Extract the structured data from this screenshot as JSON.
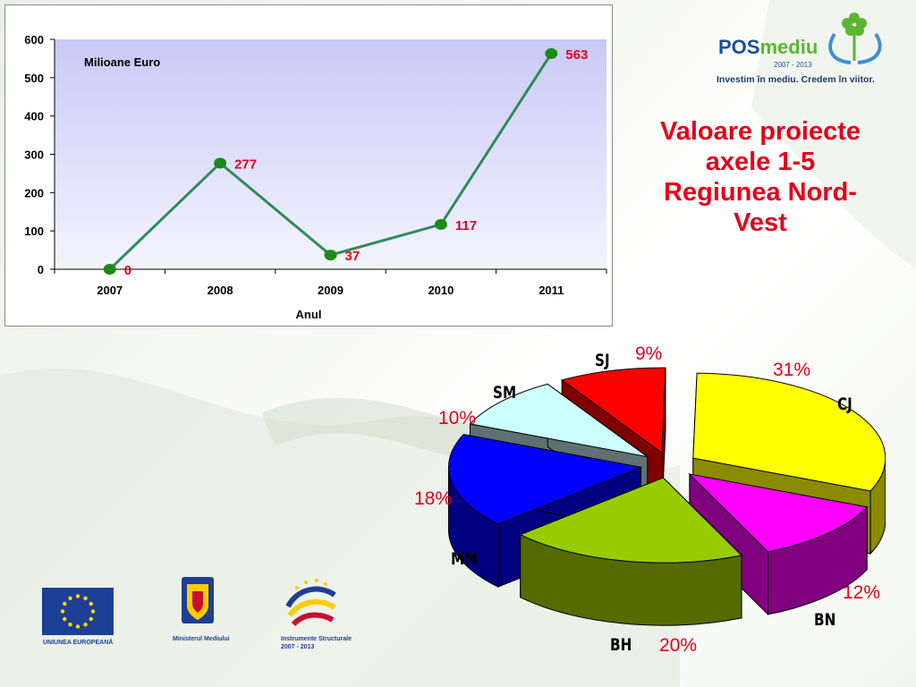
{
  "slide_title_lines": [
    "Valoare proiecte",
    "axele 1-5",
    "Regiunea Nord-",
    "Vest"
  ],
  "logo": {
    "word_part1": "POS",
    "word_part2": "mediu",
    "years": "2007 - 2013",
    "tagline": "Investim în mediu. Credem în viitor."
  },
  "bottom_logos": {
    "eu": "UNIUNEA EUROPEANĂ",
    "ministry": "Ministerul Mediului",
    "instruments": "Instrumente Structurale",
    "instruments_years": "2007 - 2013"
  },
  "colors": {
    "line": "#2e8b57",
    "marker": "#1a8a1a",
    "data_label": "#e3001b",
    "title": "#e3001b"
  },
  "chart_data": [
    {
      "type": "line",
      "title": "",
      "unit_label": "Milioane Euro",
      "xlabel": "Anul",
      "ylabel": "",
      "x": [
        "2007",
        "2008",
        "2009",
        "2010",
        "2011"
      ],
      "y_ticks": [
        "0",
        "100",
        "200",
        "300",
        "400",
        "500",
        "600"
      ],
      "ylim": [
        0,
        600
      ],
      "grid": false,
      "series": [
        {
          "values": [
            0,
            277,
            37,
            117,
            563
          ],
          "labels": [
            "0",
            "277",
            "37",
            "117",
            "563"
          ]
        }
      ]
    },
    {
      "type": "pie",
      "title": "",
      "categories": [
        "CJ",
        "BN",
        "BH",
        "MM",
        "SM",
        "SJ"
      ],
      "values": [
        31,
        12,
        20,
        18,
        10,
        9
      ],
      "labels": [
        "31%",
        "12%",
        "20%",
        "18%",
        "10%",
        "9%"
      ],
      "colors": [
        "#ffff00",
        "#ff00ff",
        "#99cc00",
        "#0000ff",
        "#ccffff",
        "#ff0000"
      ],
      "side_colors": [
        "#8b8b00",
        "#800080",
        "#556b00",
        "#000080",
        "#607070",
        "#800000"
      ]
    }
  ]
}
